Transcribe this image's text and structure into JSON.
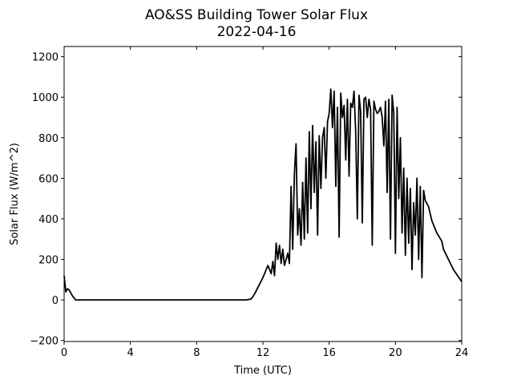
{
  "chart_data": {
    "type": "line",
    "title": "AO&SS Building Tower Solar Flux",
    "subtitle": "2022-04-16",
    "x_label": "Time (UTC)",
    "y_label": "Solar Flux (W/m^2)",
    "xlim": [
      0,
      24
    ],
    "ylim": [
      -205,
      1250
    ],
    "xticks": [
      0,
      4,
      8,
      12,
      16,
      20,
      24
    ],
    "yticks": [
      {
        "value": -200,
        "label": "−200"
      },
      0,
      200,
      400,
      600,
      800,
      1000,
      1200
    ],
    "x": [
      0,
      0.1,
      0.2,
      0.3,
      0.5,
      0.7,
      1,
      11,
      11.3,
      11.5,
      12,
      12.3,
      12.5,
      12.6,
      12.7,
      12.8,
      12.9,
      13.0,
      13.1,
      13.2,
      13.3,
      13.5,
      13.6,
      13.7,
      13.8,
      13.9,
      14.0,
      14.1,
      14.2,
      14.3,
      14.4,
      14.5,
      14.6,
      14.7,
      14.8,
      14.9,
      15.0,
      15.1,
      15.2,
      15.3,
      15.4,
      15.5,
      15.6,
      15.7,
      15.8,
      15.9,
      16.0,
      16.1,
      16.2,
      16.3,
      16.4,
      16.5,
      16.6,
      16.7,
      16.8,
      16.9,
      17.0,
      17.1,
      17.2,
      17.3,
      17.4,
      17.5,
      17.6,
      17.7,
      17.8,
      17.9,
      18.0,
      18.1,
      18.2,
      18.3,
      18.4,
      18.5,
      18.6,
      18.7,
      18.8,
      18.9,
      19.0,
      19.1,
      19.2,
      19.3,
      19.4,
      19.5,
      19.6,
      19.7,
      19.8,
      19.9,
      20.0,
      20.1,
      20.2,
      20.3,
      20.4,
      20.5,
      20.6,
      20.7,
      20.8,
      20.9,
      21.0,
      21.1,
      21.2,
      21.3,
      21.4,
      21.5,
      21.6,
      21.7,
      21.8,
      22,
      22.2,
      22.5,
      22.8,
      22.9,
      23.5,
      24
    ],
    "series": [
      {
        "name": "Solar Flux",
        "color": "#000000",
        "values": [
          120,
          40,
          55,
          50,
          20,
          0,
          0,
          0,
          5,
          30,
          110,
          170,
          130,
          190,
          120,
          280,
          200,
          270,
          180,
          250,
          170,
          230,
          180,
          560,
          250,
          620,
          770,
          320,
          450,
          270,
          580,
          300,
          700,
          330,
          830,
          450,
          860,
          530,
          780,
          320,
          810,
          550,
          800,
          850,
          600,
          880,
          920,
          1040,
          850,
          1030,
          560,
          950,
          310,
          1020,
          900,
          960,
          690,
          990,
          610,
          970,
          950,
          1030,
          830,
          400,
          1010,
          930,
          380,
          990,
          1000,
          900,
          990,
          940,
          270,
          980,
          940,
          920,
          930,
          950,
          900,
          760,
          980,
          530,
          990,
          300,
          1010,
          920,
          230,
          950,
          500,
          800,
          330,
          650,
          220,
          600,
          280,
          550,
          150,
          480,
          320,
          600,
          200,
          560,
          110,
          540,
          490,
          460,
          390,
          330,
          290,
          250,
          150,
          90
        ]
      }
    ]
  }
}
